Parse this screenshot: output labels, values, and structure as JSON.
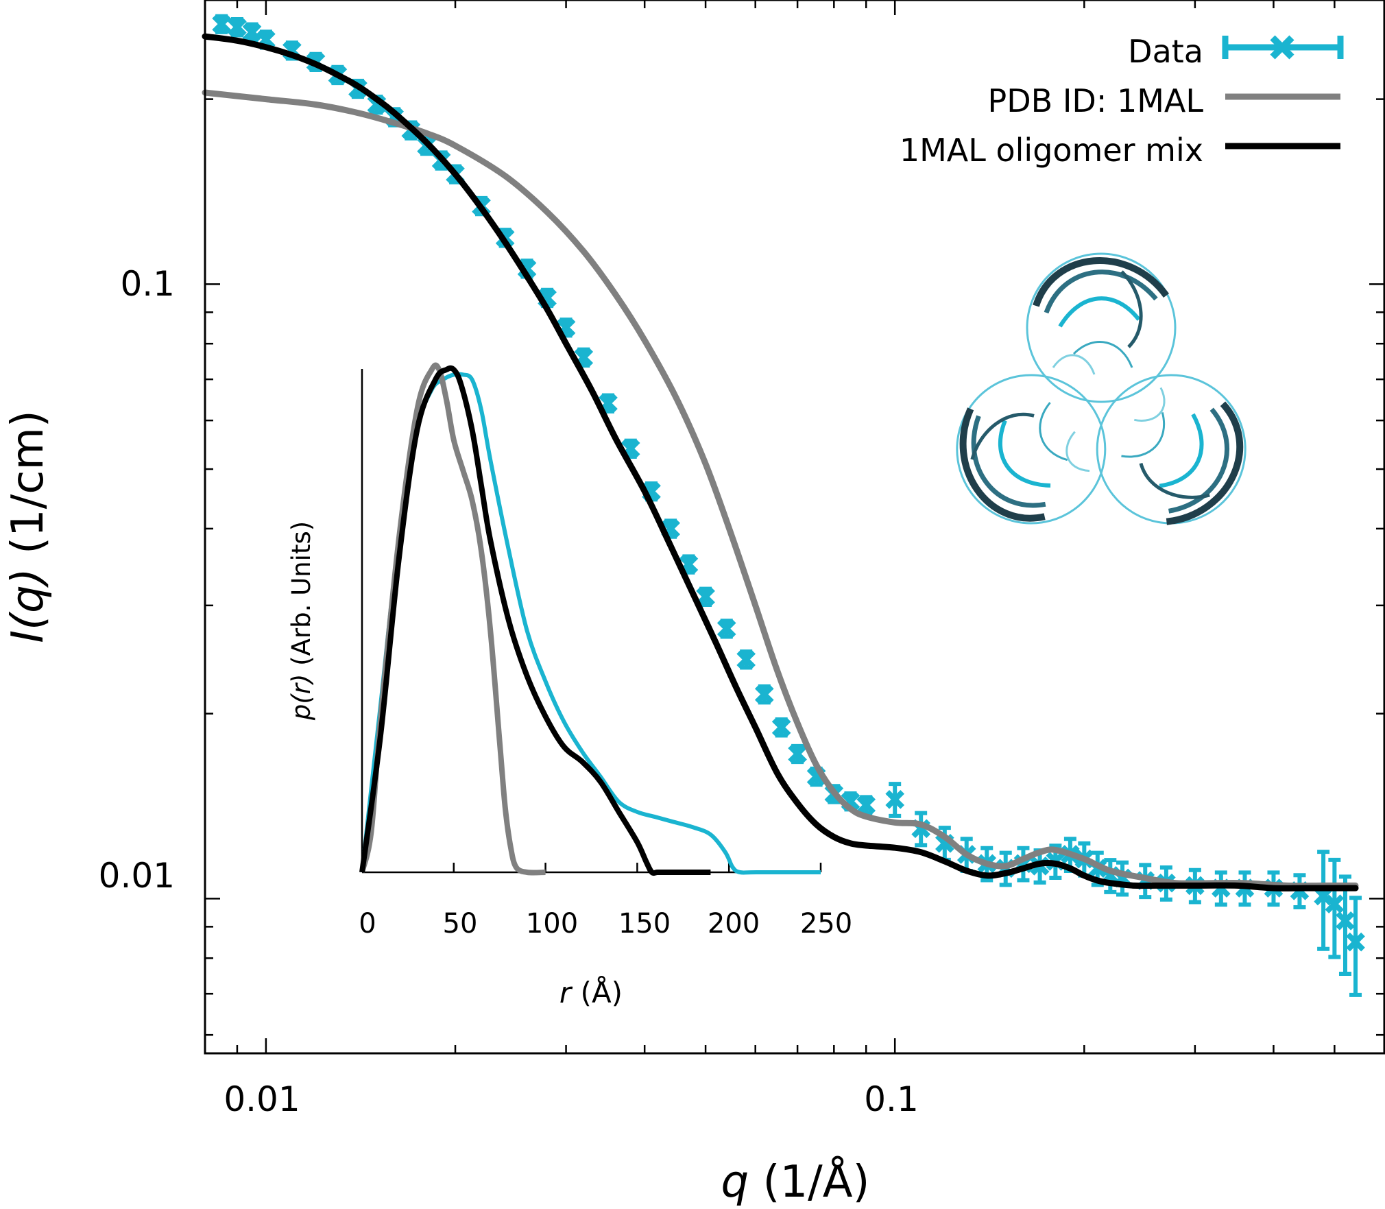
{
  "chart_data": [
    {
      "type": "scatter",
      "xlabel": {
        "var": "q",
        "unit": " (1/Å)"
      },
      "ylabel": {
        "var": "I(q)",
        "unit": " (1/cm)"
      },
      "xscale": "log",
      "yscale": "log",
      "xlim": [
        0.008,
        0.6
      ],
      "ylim": [
        0.0056,
        0.29
      ],
      "xticks": [
        {
          "value": 0.01,
          "label": "0.01"
        },
        {
          "value": 0.1,
          "label": "0.1"
        }
      ],
      "yticks": [
        {
          "value": 0.01,
          "label": "0.01"
        },
        {
          "value": 0.1,
          "label": "0.1"
        }
      ],
      "legend_position": "top-right",
      "colors": {
        "data": "#1ab4d0",
        "pdb": "#808080",
        "mix": "#000000"
      },
      "series": [
        {
          "name": "Data",
          "style": "points-errorbars",
          "x": [
            0.0085,
            0.009,
            0.0095,
            0.01,
            0.011,
            0.012,
            0.013,
            0.014,
            0.015,
            0.016,
            0.017,
            0.018,
            0.019,
            0.02,
            0.022,
            0.024,
            0.026,
            0.028,
            0.03,
            0.032,
            0.035,
            0.038,
            0.041,
            0.044,
            0.047,
            0.05,
            0.054,
            0.058,
            0.062,
            0.066,
            0.07,
            0.075,
            0.08,
            0.085,
            0.09,
            0.1,
            0.11,
            0.12,
            0.13,
            0.14,
            0.15,
            0.16,
            0.17,
            0.18,
            0.19,
            0.2,
            0.21,
            0.22,
            0.23,
            0.25,
            0.27,
            0.3,
            0.33,
            0.36,
            0.4,
            0.44,
            0.48,
            0.5,
            0.52,
            0.54
          ],
          "y": [
            0.265,
            0.262,
            0.257,
            0.25,
            0.24,
            0.23,
            0.219,
            0.208,
            0.196,
            0.187,
            0.178,
            0.168,
            0.159,
            0.151,
            0.134,
            0.119,
            0.106,
            0.095,
            0.085,
            0.076,
            0.064,
            0.054,
            0.046,
            0.04,
            0.035,
            0.031,
            0.0275,
            0.0245,
            0.0215,
            0.019,
            0.0172,
            0.0158,
            0.0148,
            0.0144,
            0.0142,
            0.0145,
            0.013,
            0.0123,
            0.0118,
            0.0114,
            0.0112,
            0.0114,
            0.0113,
            0.0115,
            0.0118,
            0.0116,
            0.0112,
            0.0109,
            0.0108,
            0.0107,
            0.0106,
            0.0105,
            0.0104,
            0.0104,
            0.0104,
            0.0103,
            0.0101,
            0.0098,
            0.0092,
            0.0085
          ]
        },
        {
          "name": "PDB ID: 1MAL",
          "style": "line",
          "x": [
            0.008,
            0.01,
            0.012,
            0.014,
            0.016,
            0.018,
            0.02,
            0.024,
            0.028,
            0.032,
            0.036,
            0.04,
            0.045,
            0.05,
            0.055,
            0.06,
            0.065,
            0.07,
            0.075,
            0.08,
            0.085,
            0.09,
            0.1,
            0.11,
            0.12,
            0.13,
            0.14,
            0.15,
            0.16,
            0.17,
            0.18,
            0.2,
            0.22,
            0.25,
            0.28,
            0.32,
            0.36,
            0.42,
            0.48,
            0.54
          ],
          "y": [
            0.205,
            0.2,
            0.196,
            0.19,
            0.183,
            0.176,
            0.168,
            0.15,
            0.131,
            0.113,
            0.096,
            0.081,
            0.065,
            0.051,
            0.039,
            0.03,
            0.0235,
            0.0193,
            0.0165,
            0.0149,
            0.014,
            0.0136,
            0.0133,
            0.0132,
            0.0126,
            0.0118,
            0.0114,
            0.0113,
            0.0116,
            0.0119,
            0.012,
            0.0116,
            0.0111,
            0.0108,
            0.0106,
            0.0106,
            0.0106,
            0.0105,
            0.0105,
            0.0105
          ]
        },
        {
          "name": "1MAL oligomer mix",
          "style": "line",
          "x": [
            0.008,
            0.009,
            0.01,
            0.011,
            0.012,
            0.013,
            0.014,
            0.015,
            0.016,
            0.018,
            0.02,
            0.022,
            0.024,
            0.026,
            0.028,
            0.03,
            0.033,
            0.036,
            0.04,
            0.044,
            0.048,
            0.052,
            0.056,
            0.06,
            0.065,
            0.07,
            0.075,
            0.08,
            0.085,
            0.09,
            0.1,
            0.11,
            0.12,
            0.13,
            0.14,
            0.15,
            0.16,
            0.17,
            0.18,
            0.19,
            0.2,
            0.21,
            0.22,
            0.24,
            0.26,
            0.3,
            0.35,
            0.4,
            0.45,
            0.54
          ],
          "y": [
            0.253,
            0.249,
            0.243,
            0.236,
            0.228,
            0.219,
            0.21,
            0.2,
            0.19,
            0.17,
            0.151,
            0.133,
            0.117,
            0.103,
            0.091,
            0.08,
            0.067,
            0.056,
            0.046,
            0.0375,
            0.031,
            0.026,
            0.022,
            0.019,
            0.016,
            0.0143,
            0.0132,
            0.0126,
            0.0123,
            0.0122,
            0.0121,
            0.0119,
            0.0115,
            0.0111,
            0.0109,
            0.011,
            0.0112,
            0.0114,
            0.0114,
            0.0112,
            0.0109,
            0.0107,
            0.0106,
            0.0105,
            0.0105,
            0.0105,
            0.0105,
            0.0104,
            0.0104,
            0.0104
          ]
        }
      ]
    },
    {
      "type": "line",
      "role": "inset",
      "xlabel": {
        "var": "r",
        "unit": " (Å)"
      },
      "ylabel": {
        "var": "p(r)",
        "unit": " (Arb. Units)"
      },
      "xlim": [
        0,
        250
      ],
      "ylim": [
        0,
        1
      ],
      "xticks": [
        {
          "value": 0,
          "label": "0"
        },
        {
          "value": 50,
          "label": "50"
        },
        {
          "value": 100,
          "label": "100"
        },
        {
          "value": 150,
          "label": "150"
        },
        {
          "value": 200,
          "label": "200"
        },
        {
          "value": 250,
          "label": "250"
        }
      ],
      "series": [
        {
          "name": "Data",
          "x": [
            0,
            10,
            20,
            30,
            38,
            44,
            50,
            55,
            60,
            65,
            70,
            80,
            90,
            100,
            110,
            120,
            130,
            140,
            150,
            160,
            170,
            180,
            190,
            198,
            202,
            206,
            215,
            250
          ],
          "y": [
            0,
            0.33,
            0.66,
            0.88,
            0.96,
            0.98,
            0.99,
            0.99,
            0.98,
            0.92,
            0.82,
            0.64,
            0.48,
            0.38,
            0.3,
            0.24,
            0.19,
            0.14,
            0.12,
            0.11,
            0.1,
            0.09,
            0.075,
            0.04,
            0.01,
            0,
            0,
            0
          ]
        },
        {
          "name": "PDB ID: 1MAL",
          "x": [
            0,
            5,
            10,
            20,
            30,
            38,
            42,
            46,
            50,
            55,
            60,
            65,
            70,
            75,
            78,
            81,
            84,
            90,
            100
          ],
          "y": [
            0,
            0.08,
            0.3,
            0.66,
            0.92,
            1.0,
            1.0,
            0.94,
            0.86,
            0.8,
            0.74,
            0.64,
            0.48,
            0.26,
            0.13,
            0.05,
            0.01,
            0,
            0
          ]
        },
        {
          "name": "1MAL oligomer mix",
          "x": [
            0,
            10,
            20,
            30,
            40,
            46,
            50,
            54,
            60,
            65,
            70,
            80,
            90,
            100,
            110,
            120,
            130,
            140,
            150,
            155,
            158,
            161,
            165,
            180,
            190
          ],
          "y": [
            0,
            0.27,
            0.62,
            0.88,
            0.98,
            1.0,
            1.0,
            0.97,
            0.88,
            0.77,
            0.66,
            0.5,
            0.39,
            0.31,
            0.25,
            0.22,
            0.18,
            0.12,
            0.06,
            0.02,
            0,
            0,
            0,
            0,
            0
          ]
        }
      ]
    }
  ]
}
